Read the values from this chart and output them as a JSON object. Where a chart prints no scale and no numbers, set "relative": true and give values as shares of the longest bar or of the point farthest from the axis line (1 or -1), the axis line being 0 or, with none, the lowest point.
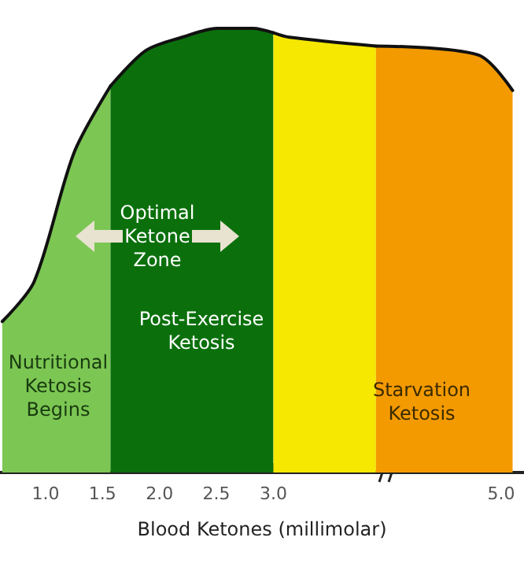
{
  "chart_data": {
    "type": "area",
    "relative": true,
    "xlabel": "Blood Ketones (millimolar)",
    "series": [
      {
        "color": "#7cc653",
        "x": [
          0.62,
          0.9,
          1.25,
          1.57
        ],
        "values": [
          0.34,
          0.43,
          0.72,
          0.87
        ]
      },
      {
        "color": "#0b700c",
        "x": [
          1.57,
          1.88,
          2.2,
          2.51,
          2.82,
          3.0
        ],
        "values": [
          0.87,
          0.95,
          0.98,
          1,
          1,
          0.99
        ]
      },
      {
        "color": "#f6e800",
        "x": [
          3.0,
          3.14,
          3.9
        ],
        "values": [
          0.99,
          0.98,
          0.96
        ]
      },
      {
        "color": "#f39a00",
        "x": [
          3.9,
          4.8,
          5.1
        ],
        "values": [
          0.96,
          0.94,
          0.86
        ]
      }
    ],
    "xlim": [
      0.6,
      5.2
    ],
    "xticks": [
      {
        "value": 0.75,
        "label": null
      },
      {
        "value": 1,
        "label": "1.0"
      },
      {
        "value": 1.25,
        "label": null
      },
      {
        "value": 1.5,
        "label": "1.5"
      },
      {
        "value": 1.75,
        "label": null
      },
      {
        "value": 2,
        "label": "2.0"
      },
      {
        "value": 2.25,
        "label": null
      },
      {
        "value": 2.5,
        "label": "2.5"
      },
      {
        "value": 2.75,
        "label": null
      },
      {
        "value": 3,
        "label": "3.0"
      },
      {
        "value": 5,
        "label": "5.0"
      }
    ],
    "annotations": [
      "Optimal\nKetone\nZone",
      "Post-Exercise\nKetosis",
      "Nutritional\nKetosis\nBegins",
      "Starvation\nKetosis"
    ],
    "grid": false,
    "marker": "none",
    "line_style": "solid"
  }
}
